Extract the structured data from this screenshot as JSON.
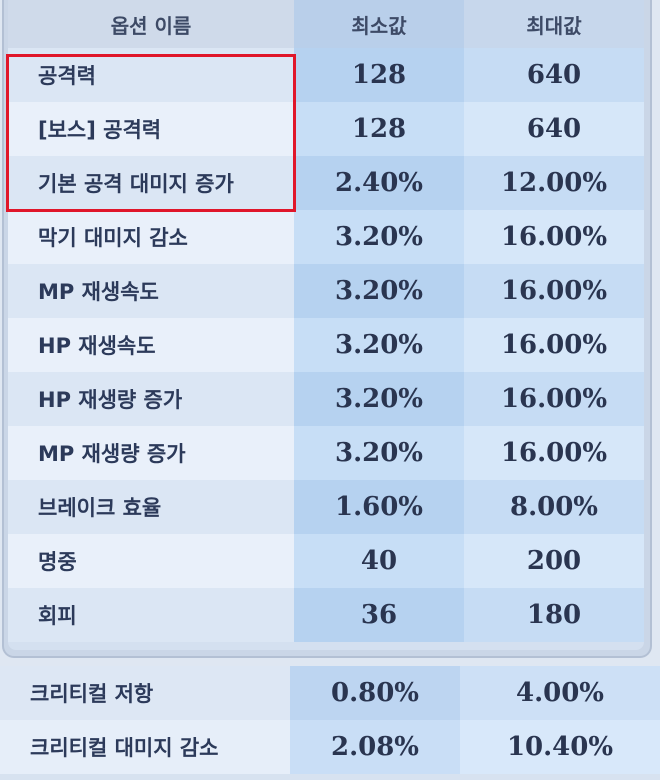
{
  "header": {
    "name": "옵션 이름",
    "min": "최소값",
    "max": "최대값"
  },
  "rows": [
    {
      "name": "공격력",
      "min": "128",
      "max": "640"
    },
    {
      "name": "[보스] 공격력",
      "min": "128",
      "max": "640"
    },
    {
      "name": "기본 공격 대미지 증가",
      "min": "2.40%",
      "max": "12.00%"
    },
    {
      "name": "막기 대미지 감소",
      "min": "3.20%",
      "max": "16.00%"
    },
    {
      "name": "MP 재생속도",
      "min": "3.20%",
      "max": "16.00%"
    },
    {
      "name": "HP 재생속도",
      "min": "3.20%",
      "max": "16.00%"
    },
    {
      "name": "HP 재생량 증가",
      "min": "3.20%",
      "max": "16.00%"
    },
    {
      "name": "MP 재생량 증가",
      "min": "3.20%",
      "max": "16.00%"
    },
    {
      "name": "브레이크 효율",
      "min": "1.60%",
      "max": "8.00%"
    },
    {
      "name": "명중",
      "min": "40",
      "max": "200"
    },
    {
      "name": "회피",
      "min": "36",
      "max": "180"
    }
  ],
  "bottom_rows": [
    {
      "name": "크리티컬 저항",
      "min": "0.80%",
      "max": "4.00%"
    },
    {
      "name": "크리티컬 대미지 감소",
      "min": "2.08%",
      "max": "10.40%"
    }
  ],
  "colors": {
    "highlight": "#e0162a"
  }
}
